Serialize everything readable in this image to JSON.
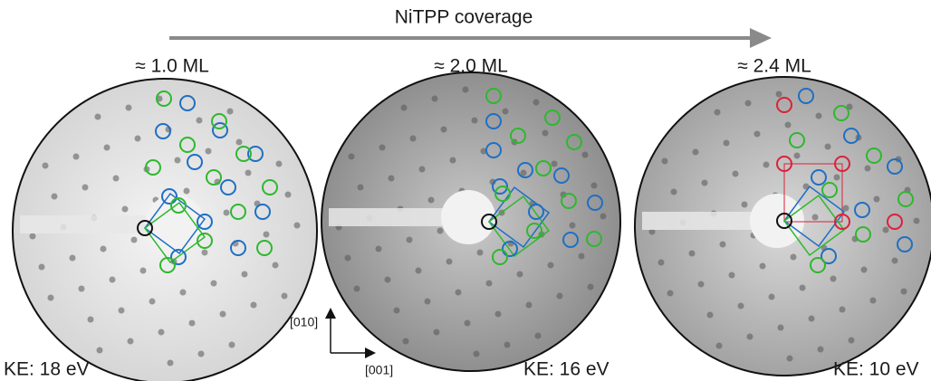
{
  "header": {
    "title": "NiTPP coverage"
  },
  "panels": [
    {
      "coverage": "≈ 1.0 ML",
      "energy": "KE: 18 eV"
    },
    {
      "coverage": "≈ 2.0 ML",
      "energy": "KE: 16 eV"
    },
    {
      "coverage": "≈ 2.4 ML",
      "energy": "KE: 10 eV"
    }
  ],
  "axes": {
    "vertical": "[010]",
    "horizontal": "[001]"
  }
}
